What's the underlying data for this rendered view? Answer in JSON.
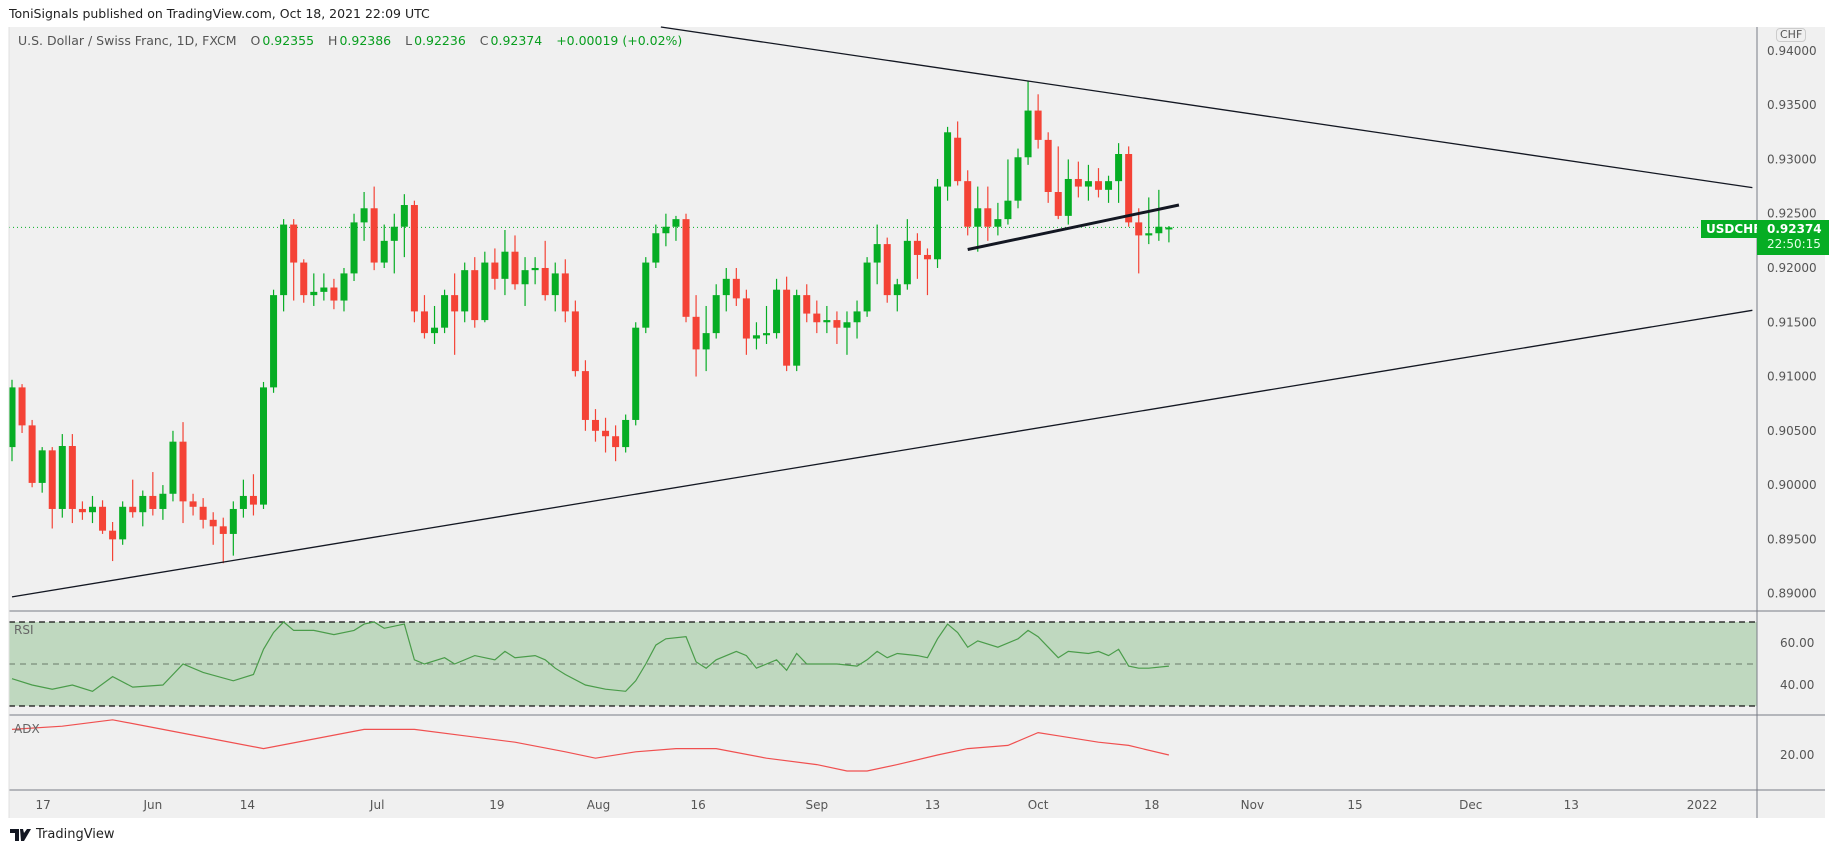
{
  "header": {
    "publisher_line": "ToniSignals published on TradingView.com, Oct 18, 2021 22:09 UTC"
  },
  "legend": {
    "symbol_desc": "U.S. Dollar / Swiss Franc, 1D, FXCM",
    "o_label": "O",
    "o_value": "0.92355",
    "h_label": "H",
    "h_value": "0.92386",
    "l_label": "L",
    "l_value": "0.92236",
    "c_label": "C",
    "c_value": "0.92374",
    "change": "+0.00019 (+0.02%)"
  },
  "price_axis": {
    "currency": "CHF",
    "symbol_label": "USDCHF",
    "last_price": "0.92374",
    "countdown": "22:50:15",
    "ticks": [
      "0.94000",
      "0.93500",
      "0.93000",
      "0.92500",
      "0.92000",
      "0.91500",
      "0.91000",
      "0.90500",
      "0.90000",
      "0.89500",
      "0.89000"
    ]
  },
  "rsi_pane": {
    "label": "RSI",
    "ticks": [
      "60.00",
      "40.00"
    ]
  },
  "adx_pane": {
    "label": "ADX",
    "ticks": [
      "20.00"
    ]
  },
  "brand": {
    "name": "TradingView"
  },
  "colors": {
    "up": "#06ad24",
    "down": "#f44336",
    "rsi_line": "#4a9c4a",
    "rsi_band": "#bfd8bf",
    "adx_line": "#f05050",
    "bg": "#f0f0f0"
  },
  "chart_data": {
    "type": "candlestick",
    "title": "U.S. Dollar / Swiss Franc, 1D, FXCM",
    "ylim": [
      0.8884,
      0.9422
    ],
    "bars_visible_through_index": 173,
    "last_price": 0.92374,
    "time_labels": [
      {
        "text": "17",
        "index": 3.1
      },
      {
        "text": "Jun",
        "index": 14
      },
      {
        "text": "14",
        "index": 23.4
      },
      {
        "text": "Jul",
        "index": 36.3
      },
      {
        "text": "19",
        "index": 48.2
      },
      {
        "text": "Aug",
        "index": 58.3
      },
      {
        "text": "16",
        "index": 68.2
      },
      {
        "text": "Sep",
        "index": 80
      },
      {
        "text": "13",
        "index": 91.5
      },
      {
        "text": "Oct",
        "index": 102
      },
      {
        "text": "18",
        "index": 113.3
      },
      {
        "text": "Nov",
        "index": 123.3
      },
      {
        "text": "15",
        "index": 133.5
      },
      {
        "text": "Dec",
        "index": 145
      },
      {
        "text": "13",
        "index": 155
      },
      {
        "text": "2022",
        "index": 168
      }
    ],
    "ohlc": [
      [
        0.9035,
        0.9097,
        0.9022,
        0.909
      ],
      [
        0.909,
        0.9093,
        0.9048,
        0.9055
      ],
      [
        0.9055,
        0.906,
        0.8998,
        0.9002
      ],
      [
        0.9002,
        0.9035,
        0.8993,
        0.9032
      ],
      [
        0.9032,
        0.9035,
        0.896,
        0.8978
      ],
      [
        0.8978,
        0.9047,
        0.897,
        0.9036
      ],
      [
        0.9036,
        0.9047,
        0.8965,
        0.8978
      ],
      [
        0.8978,
        0.8985,
        0.8968,
        0.8975
      ],
      [
        0.8975,
        0.899,
        0.8965,
        0.898
      ],
      [
        0.898,
        0.8986,
        0.8955,
        0.8958
      ],
      [
        0.8958,
        0.8966,
        0.893,
        0.895
      ],
      [
        0.895,
        0.8985,
        0.8945,
        0.898
      ],
      [
        0.898,
        0.9005,
        0.897,
        0.8975
      ],
      [
        0.8975,
        0.8995,
        0.8962,
        0.899
      ],
      [
        0.899,
        0.9012,
        0.8972,
        0.8978
      ],
      [
        0.8978,
        0.9,
        0.8968,
        0.8992
      ],
      [
        0.8992,
        0.905,
        0.8985,
        0.904
      ],
      [
        0.904,
        0.9058,
        0.8965,
        0.8985
      ],
      [
        0.8985,
        0.8992,
        0.8972,
        0.898
      ],
      [
        0.898,
        0.8988,
        0.896,
        0.8968
      ],
      [
        0.8968,
        0.8975,
        0.8945,
        0.8962
      ],
      [
        0.8962,
        0.897,
        0.8928,
        0.8955
      ],
      [
        0.8955,
        0.8985,
        0.8935,
        0.8978
      ],
      [
        0.8978,
        0.9005,
        0.897,
        0.899
      ],
      [
        0.899,
        0.901,
        0.8972,
        0.8982
      ],
      [
        0.8982,
        0.9095,
        0.8978,
        0.909
      ],
      [
        0.909,
        0.918,
        0.9085,
        0.9175
      ],
      [
        0.9175,
        0.9245,
        0.916,
        0.924
      ],
      [
        0.924,
        0.9245,
        0.917,
        0.9205
      ],
      [
        0.9205,
        0.9208,
        0.9168,
        0.9175
      ],
      [
        0.9175,
        0.9195,
        0.9165,
        0.9178
      ],
      [
        0.9178,
        0.9195,
        0.917,
        0.9182
      ],
      [
        0.9182,
        0.919,
        0.9162,
        0.917
      ],
      [
        0.917,
        0.92,
        0.916,
        0.9195
      ],
      [
        0.9195,
        0.925,
        0.9188,
        0.9242
      ],
      [
        0.9242,
        0.927,
        0.9225,
        0.9255
      ],
      [
        0.9255,
        0.9275,
        0.9198,
        0.9205
      ],
      [
        0.9205,
        0.924,
        0.92,
        0.9225
      ],
      [
        0.9225,
        0.925,
        0.9195,
        0.9238
      ],
      [
        0.9238,
        0.9268,
        0.921,
        0.9258
      ],
      [
        0.9258,
        0.9262,
        0.915,
        0.916
      ],
      [
        0.916,
        0.9175,
        0.9135,
        0.914
      ],
      [
        0.914,
        0.9165,
        0.913,
        0.9145
      ],
      [
        0.9145,
        0.918,
        0.914,
        0.9175
      ],
      [
        0.9175,
        0.9195,
        0.912,
        0.916
      ],
      [
        0.916,
        0.9205,
        0.915,
        0.9198
      ],
      [
        0.9198,
        0.921,
        0.9145,
        0.9152
      ],
      [
        0.9152,
        0.9215,
        0.915,
        0.9205
      ],
      [
        0.9205,
        0.9218,
        0.918,
        0.919
      ],
      [
        0.919,
        0.9235,
        0.9175,
        0.9215
      ],
      [
        0.9215,
        0.923,
        0.918,
        0.9185
      ],
      [
        0.9185,
        0.921,
        0.9165,
        0.9198
      ],
      [
        0.9198,
        0.921,
        0.9185,
        0.92
      ],
      [
        0.92,
        0.9225,
        0.917,
        0.9175
      ],
      [
        0.9175,
        0.9205,
        0.916,
        0.9195
      ],
      [
        0.9195,
        0.9208,
        0.915,
        0.916
      ],
      [
        0.916,
        0.917,
        0.91,
        0.9105
      ],
      [
        0.9105,
        0.9115,
        0.905,
        0.906
      ],
      [
        0.906,
        0.907,
        0.904,
        0.905
      ],
      [
        0.905,
        0.9062,
        0.903,
        0.9045
      ],
      [
        0.9045,
        0.9055,
        0.9022,
        0.9035
      ],
      [
        0.9035,
        0.9065,
        0.903,
        0.906
      ],
      [
        0.906,
        0.915,
        0.9055,
        0.9145
      ],
      [
        0.9145,
        0.921,
        0.914,
        0.9205
      ],
      [
        0.9205,
        0.924,
        0.92,
        0.9232
      ],
      [
        0.9232,
        0.925,
        0.922,
        0.9238
      ],
      [
        0.9238,
        0.9248,
        0.9225,
        0.9245
      ],
      [
        0.9245,
        0.925,
        0.915,
        0.9155
      ],
      [
        0.9155,
        0.9175,
        0.91,
        0.9125
      ],
      [
        0.9125,
        0.9165,
        0.9105,
        0.914
      ],
      [
        0.914,
        0.9185,
        0.9135,
        0.9175
      ],
      [
        0.9175,
        0.92,
        0.916,
        0.919
      ],
      [
        0.919,
        0.92,
        0.9165,
        0.9172
      ],
      [
        0.9172,
        0.918,
        0.912,
        0.9135
      ],
      [
        0.9135,
        0.915,
        0.9125,
        0.9138
      ],
      [
        0.9138,
        0.9165,
        0.913,
        0.914
      ],
      [
        0.914,
        0.919,
        0.9135,
        0.918
      ],
      [
        0.918,
        0.9192,
        0.9105,
        0.911
      ],
      [
        0.911,
        0.918,
        0.9105,
        0.9175
      ],
      [
        0.9175,
        0.9185,
        0.915,
        0.9158
      ],
      [
        0.9158,
        0.917,
        0.914,
        0.915
      ],
      [
        0.915,
        0.9165,
        0.914,
        0.9152
      ],
      [
        0.9152,
        0.916,
        0.913,
        0.9145
      ],
      [
        0.9145,
        0.916,
        0.912,
        0.915
      ],
      [
        0.915,
        0.917,
        0.9135,
        0.916
      ],
      [
        0.916,
        0.921,
        0.9155,
        0.9205
      ],
      [
        0.9205,
        0.924,
        0.9185,
        0.9222
      ],
      [
        0.9222,
        0.9228,
        0.9168,
        0.9175
      ],
      [
        0.9175,
        0.919,
        0.916,
        0.9185
      ],
      [
        0.9185,
        0.9245,
        0.918,
        0.9225
      ],
      [
        0.9225,
        0.9232,
        0.919,
        0.9212
      ],
      [
        0.9212,
        0.9218,
        0.9175,
        0.9208
      ],
      [
        0.9208,
        0.9282,
        0.92,
        0.9275
      ],
      [
        0.9275,
        0.933,
        0.9262,
        0.9325
      ],
      [
        0.932,
        0.9335,
        0.9276,
        0.928
      ],
      [
        0.928,
        0.929,
        0.923,
        0.9238
      ],
      [
        0.9238,
        0.9275,
        0.9215,
        0.9255
      ],
      [
        0.9255,
        0.9275,
        0.9225,
        0.9238
      ],
      [
        0.9238,
        0.926,
        0.923,
        0.9245
      ],
      [
        0.9245,
        0.93,
        0.924,
        0.9262
      ],
      [
        0.9262,
        0.931,
        0.9255,
        0.9302
      ],
      [
        0.9302,
        0.9372,
        0.9295,
        0.9345
      ],
      [
        0.9345,
        0.936,
        0.931,
        0.9318
      ],
      [
        0.9318,
        0.9325,
        0.926,
        0.927
      ],
      [
        0.927,
        0.9312,
        0.9245,
        0.9248
      ],
      [
        0.9248,
        0.93,
        0.924,
        0.9282
      ],
      [
        0.9282,
        0.9298,
        0.9265,
        0.9275
      ],
      [
        0.9275,
        0.9295,
        0.9262,
        0.928
      ],
      [
        0.928,
        0.9292,
        0.9265,
        0.9272
      ],
      [
        0.9272,
        0.9285,
        0.926,
        0.928
      ],
      [
        0.928,
        0.9315,
        0.926,
        0.9305
      ],
      [
        0.9305,
        0.9312,
        0.9238,
        0.9242
      ],
      [
        0.9242,
        0.9255,
        0.9195,
        0.923
      ],
      [
        0.923,
        0.9265,
        0.9222,
        0.9232
      ],
      [
        0.9232,
        0.9272,
        0.9225,
        0.9238
      ],
      [
        0.92355,
        0.92386,
        0.92236,
        0.92374
      ]
    ],
    "trendlines": [
      {
        "name": "upper-trendline",
        "from": [
          64.5,
          0.9422
        ],
        "to": [
          173,
          0.9274
        ],
        "width": "thin"
      },
      {
        "name": "lower-trendline",
        "from": [
          0,
          0.8897
        ],
        "to": [
          173,
          0.9161
        ],
        "width": "thin"
      },
      {
        "name": "broken-support-line",
        "from": [
          95,
          0.9217
        ],
        "to": [
          116,
          0.9258
        ],
        "width": "thick"
      }
    ],
    "rsi": {
      "levels": [
        70,
        50,
        30
      ],
      "range": [
        30,
        70
      ],
      "points": [
        [
          0,
          43
        ],
        [
          2,
          40
        ],
        [
          4,
          38
        ],
        [
          6,
          40
        ],
        [
          8,
          37
        ],
        [
          10,
          44
        ],
        [
          12,
          39
        ],
        [
          15,
          40
        ],
        [
          17,
          50
        ],
        [
          19,
          46
        ],
        [
          22,
          42
        ],
        [
          24,
          45
        ],
        [
          25,
          57
        ],
        [
          26,
          65
        ],
        [
          27,
          70
        ],
        [
          28,
          66
        ],
        [
          30,
          66
        ],
        [
          32,
          64
        ],
        [
          34,
          66
        ],
        [
          35,
          69
        ],
        [
          36,
          70
        ],
        [
          37,
          67
        ],
        [
          39,
          69
        ],
        [
          40,
          52
        ],
        [
          41,
          50
        ],
        [
          43,
          53
        ],
        [
          44,
          50
        ],
        [
          46,
          54
        ],
        [
          48,
          52
        ],
        [
          49,
          56
        ],
        [
          50,
          53
        ],
        [
          52,
          54
        ],
        [
          53,
          52
        ],
        [
          54,
          48
        ],
        [
          55,
          45
        ],
        [
          57,
          40
        ],
        [
          59,
          38
        ],
        [
          61,
          37
        ],
        [
          62,
          42
        ],
        [
          63,
          50
        ],
        [
          64,
          59
        ],
        [
          65,
          62
        ],
        [
          67,
          63
        ],
        [
          68,
          51
        ],
        [
          69,
          48
        ],
        [
          70,
          52
        ],
        [
          72,
          56
        ],
        [
          73,
          54
        ],
        [
          74,
          48
        ],
        [
          76,
          52
        ],
        [
          77,
          47
        ],
        [
          78,
          55
        ],
        [
          79,
          50
        ],
        [
          82,
          50
        ],
        [
          84,
          49
        ],
        [
          85,
          52
        ],
        [
          86,
          56
        ],
        [
          87,
          53
        ],
        [
          88,
          55
        ],
        [
          90,
          54
        ],
        [
          91,
          53
        ],
        [
          92,
          62
        ],
        [
          93,
          69
        ],
        [
          94,
          65
        ],
        [
          95,
          58
        ],
        [
          96,
          61
        ],
        [
          98,
          58
        ],
        [
          100,
          62
        ],
        [
          101,
          66
        ],
        [
          102,
          63
        ],
        [
          103,
          58
        ],
        [
          104,
          53
        ],
        [
          105,
          56
        ],
        [
          107,
          55
        ],
        [
          108,
          56
        ],
        [
          109,
          54
        ],
        [
          110,
          57
        ],
        [
          111,
          49
        ],
        [
          112,
          48
        ],
        [
          113,
          48
        ],
        [
          115,
          49
        ]
      ]
    },
    "adx": {
      "points": [
        [
          0,
          28
        ],
        [
          5,
          29
        ],
        [
          10,
          31
        ],
        [
          15,
          28
        ],
        [
          20,
          25
        ],
        [
          25,
          22
        ],
        [
          30,
          25
        ],
        [
          35,
          28
        ],
        [
          40,
          28
        ],
        [
          45,
          26
        ],
        [
          50,
          24
        ],
        [
          55,
          21
        ],
        [
          58,
          19
        ],
        [
          62,
          21
        ],
        [
          66,
          22
        ],
        [
          70,
          22
        ],
        [
          75,
          19
        ],
        [
          80,
          17
        ],
        [
          83,
          15
        ],
        [
          85,
          15
        ],
        [
          88,
          17
        ],
        [
          92,
          20
        ],
        [
          95,
          22
        ],
        [
          99,
          23
        ],
        [
          102,
          27
        ],
        [
          104,
          26
        ],
        [
          108,
          24
        ],
        [
          111,
          23
        ],
        [
          115,
          20
        ]
      ]
    }
  }
}
